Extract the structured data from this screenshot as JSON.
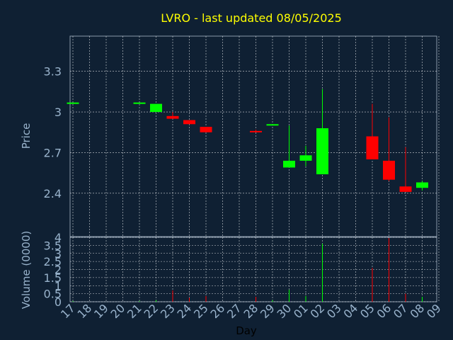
{
  "chart_data": [
    {
      "type": "candlestick",
      "title": "LVRO - last updated 08/05/2025",
      "ylabel": "Price",
      "xlabel": "",
      "ylim": [
        2.08,
        3.56
      ],
      "yticks": [
        2.4,
        2.7,
        3,
        3.3
      ],
      "ytick_labels": [
        "2.4",
        "2.7",
        "3",
        "3.3"
      ],
      "grid": true,
      "colors": {
        "up": "#00ff00",
        "down": "#ff0000",
        "title": "#ffff00",
        "text": "#99b3cc",
        "grid": "#ffffff"
      },
      "categories": [
        "17",
        "18",
        "19",
        "20",
        "21",
        "22",
        "23",
        "24",
        "25",
        "26",
        "27",
        "28",
        "29",
        "30",
        "01",
        "02",
        "03",
        "04",
        "05",
        "06",
        "07",
        "08",
        "09"
      ],
      "candles": [
        {
          "x": "17",
          "open": 3.07,
          "high": 3.07,
          "low": 3.07,
          "close": 3.07
        },
        {
          "x": "21",
          "open": 3.07,
          "high": 3.07,
          "low": 3.07,
          "close": 3.07
        },
        {
          "x": "22",
          "open": 3.0,
          "high": 3.06,
          "low": 3.0,
          "close": 3.06
        },
        {
          "x": "23",
          "open": 2.97,
          "high": 3.0,
          "low": 2.95,
          "close": 2.95
        },
        {
          "x": "24",
          "open": 2.94,
          "high": 2.94,
          "low": 2.91,
          "close": 2.91
        },
        {
          "x": "25",
          "open": 2.89,
          "high": 2.89,
          "low": 2.85,
          "close": 2.85
        },
        {
          "x": "28",
          "open": 2.86,
          "high": 2.87,
          "low": 2.85,
          "close": 2.85
        },
        {
          "x": "29",
          "open": 2.91,
          "high": 2.91,
          "low": 2.91,
          "close": 2.91
        },
        {
          "x": "30",
          "open": 2.59,
          "high": 2.9,
          "low": 2.59,
          "close": 2.64
        },
        {
          "x": "01",
          "open": 2.64,
          "high": 2.75,
          "low": 2.6,
          "close": 2.68
        },
        {
          "x": "02",
          "open": 2.54,
          "high": 3.17,
          "low": 2.54,
          "close": 2.88
        },
        {
          "x": "05",
          "open": 2.82,
          "high": 3.06,
          "low": 2.65,
          "close": 2.65
        },
        {
          "x": "06",
          "open": 2.64,
          "high": 2.96,
          "low": 2.49,
          "close": 2.5
        },
        {
          "x": "07",
          "open": 2.45,
          "high": 2.74,
          "low": 2.41,
          "close": 2.41
        },
        {
          "x": "08",
          "open": 2.44,
          "high": 2.49,
          "low": 2.42,
          "close": 2.48
        }
      ]
    },
    {
      "type": "bar",
      "title": "",
      "ylabel": "Volume (0000)",
      "xlabel": "Day",
      "ylim": [
        0,
        4
      ],
      "yticks": [
        0,
        0.5,
        1,
        1.5,
        2,
        2.5,
        3,
        3.5,
        4
      ],
      "ytick_labels": [
        "0",
        "0.5",
        "1",
        "1.5",
        "2",
        "2.5",
        "3",
        "3.5",
        "4"
      ],
      "grid": true,
      "categories": [
        "17",
        "18",
        "19",
        "20",
        "21",
        "22",
        "23",
        "24",
        "25",
        "26",
        "27",
        "28",
        "29",
        "30",
        "01",
        "02",
        "03",
        "04",
        "05",
        "06",
        "07",
        "08",
        "09"
      ],
      "bars": [
        {
          "x": "17",
          "value": 0.05,
          "color": "#00ff00"
        },
        {
          "x": "21",
          "value": 0.05,
          "color": "#00ff00"
        },
        {
          "x": "22",
          "value": 0.1,
          "color": "#00ff00"
        },
        {
          "x": "23",
          "value": 0.7,
          "color": "#ff0000"
        },
        {
          "x": "24",
          "value": 0.25,
          "color": "#ff0000"
        },
        {
          "x": "25",
          "value": 0.35,
          "color": "#ff0000"
        },
        {
          "x": "28",
          "value": 0.3,
          "color": "#ff0000"
        },
        {
          "x": "29",
          "value": 0.1,
          "color": "#00ff00"
        },
        {
          "x": "30",
          "value": 0.75,
          "color": "#00ff00"
        },
        {
          "x": "01",
          "value": 0.35,
          "color": "#00ff00"
        },
        {
          "x": "02",
          "value": 3.6,
          "color": "#00ff00"
        },
        {
          "x": "05",
          "value": 2.1,
          "color": "#ff0000"
        },
        {
          "x": "06",
          "value": 3.95,
          "color": "#ff0000"
        },
        {
          "x": "07",
          "value": 0.5,
          "color": "#ff0000"
        },
        {
          "x": "08",
          "value": 0.3,
          "color": "#00ff00"
        }
      ]
    }
  ]
}
